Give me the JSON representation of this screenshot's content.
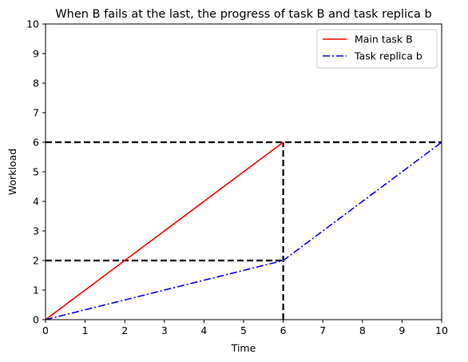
{
  "chart_data": {
    "type": "line",
    "title": "When B fails at the last, the progress of task B and task replica b",
    "xlabel": "Time",
    "ylabel": "Workload",
    "xlim": [
      0,
      10
    ],
    "ylim": [
      0,
      10
    ],
    "xticks": [
      0,
      1,
      2,
      3,
      4,
      5,
      6,
      7,
      8,
      9,
      10
    ],
    "yticks": [
      0,
      1,
      2,
      3,
      4,
      5,
      6,
      7,
      8,
      9,
      10
    ],
    "grid": false,
    "legend_position": "top-right",
    "series": [
      {
        "name": "Main task B",
        "color": "#ff0000",
        "style": "solid",
        "x": [
          0,
          6
        ],
        "y": [
          0,
          6
        ]
      },
      {
        "name": "Task replica b",
        "color": "#0000ff",
        "style": "dashdot",
        "x": [
          0,
          6,
          10
        ],
        "y": [
          0,
          2,
          6
        ]
      }
    ],
    "reference_lines": [
      {
        "orientation": "horizontal",
        "value": 6,
        "from": 0,
        "to": 10,
        "color": "#000000",
        "style": "dashed"
      },
      {
        "orientation": "horizontal",
        "value": 2,
        "from": 0,
        "to": 6,
        "color": "#000000",
        "style": "dashed"
      },
      {
        "orientation": "vertical",
        "value": 6,
        "from": 0,
        "to": 6,
        "color": "#000000",
        "style": "dashed"
      }
    ]
  }
}
